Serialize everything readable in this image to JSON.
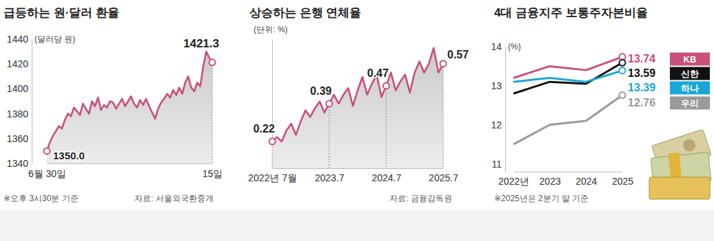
{
  "chart_data": [
    {
      "type": "line",
      "title": "급등하는 원·달러 환율",
      "y_label": "(달러당 원)",
      "categories": [
        "6월 30일",
        null,
        null,
        null,
        null,
        null,
        null,
        null,
        null,
        null,
        null,
        null,
        null,
        null,
        null,
        null,
        null,
        null,
        null,
        null,
        null,
        null,
        null,
        null,
        null,
        null,
        null,
        null,
        null,
        null,
        null,
        null,
        null,
        null,
        null,
        null,
        null,
        null,
        null,
        null,
        null,
        null,
        null,
        null,
        null,
        null,
        null,
        null,
        null,
        null,
        null,
        null,
        null,
        null,
        null,
        "15일"
      ],
      "values": [
        1350,
        1357,
        1362,
        1366,
        1370,
        1368,
        1375,
        1380,
        1378,
        1385,
        1382,
        1379,
        1388,
        1384,
        1380,
        1390,
        1386,
        1393,
        1383,
        1387,
        1385,
        1390,
        1389,
        1384,
        1388,
        1392,
        1386,
        1390,
        1394,
        1388,
        1385,
        1391,
        1387,
        1392,
        1386,
        1381,
        1376,
        1384,
        1389,
        1392,
        1396,
        1393,
        1399,
        1395,
        1401,
        1396,
        1405,
        1410,
        1401,
        1398,
        1405,
        1402,
        1418,
        1430,
        1425,
        1421.3
      ],
      "color": "#c8507a",
      "ylim": [
        1340,
        1440
      ],
      "yticks": [
        1340,
        1360,
        1380,
        1400,
        1420,
        1440
      ],
      "grid": false,
      "annotations": [
        {
          "index": 0,
          "text": "1350.0"
        },
        {
          "index": 55,
          "text": "1421.3"
        }
      ],
      "notes": [
        "※오후 3시30분 기준"
      ],
      "source": "자료: 서울외국환중개"
    },
    {
      "type": "line",
      "title": "상승하는 은행 연체율",
      "y_label": "(단위: %)",
      "categories": [
        "2022년 7월",
        null,
        null,
        null,
        null,
        null,
        null,
        null,
        null,
        null,
        null,
        null,
        "2023.7",
        null,
        null,
        null,
        null,
        null,
        null,
        null,
        null,
        null,
        null,
        null,
        "2024.7",
        null,
        null,
        null,
        null,
        null,
        null,
        null,
        null,
        null,
        null,
        null,
        "2025.7"
      ],
      "values": [
        0.22,
        0.24,
        0.22,
        0.27,
        0.3,
        0.25,
        0.31,
        0.36,
        0.33,
        0.37,
        0.4,
        0.35,
        0.39,
        0.43,
        0.39,
        0.43,
        0.46,
        0.38,
        0.45,
        0.51,
        0.43,
        0.48,
        0.52,
        0.42,
        0.47,
        0.53,
        0.45,
        0.49,
        0.52,
        0.44,
        0.53,
        0.58,
        0.53,
        0.57,
        0.64,
        0.53,
        0.57
      ],
      "color": "#c8507a",
      "ylim": [
        0.1,
        0.68
      ],
      "tick_labels": "x",
      "grid": false,
      "annotations": [
        {
          "index": 0,
          "text": "0.22"
        },
        {
          "index": 12,
          "text": "0.39"
        },
        {
          "index": 24,
          "text": "0.47"
        },
        {
          "index": 36,
          "text": "0.57"
        }
      ],
      "source": "자료: 금융감독원"
    },
    {
      "type": "line",
      "title": "4대 금융지주 보통주자본비율",
      "y_label": "(%)",
      "categories": [
        "2022년",
        "2023",
        "2024",
        "2025"
      ],
      "series": [
        {
          "name": "KB",
          "color": "#c8507a",
          "values": [
            13.2,
            13.5,
            13.4,
            13.74
          ]
        },
        {
          "name": "신한",
          "color": "#111111",
          "values": [
            12.8,
            13.1,
            13.05,
            13.59
          ]
        },
        {
          "name": "하나",
          "color": "#1ba6d8",
          "values": [
            13.1,
            13.2,
            13.1,
            13.39
          ]
        },
        {
          "name": "우리",
          "color": "#9a9a9a",
          "values": [
            11.5,
            12.0,
            12.1,
            12.76
          ]
        }
      ],
      "ylim": [
        10.8,
        14
      ],
      "yticks": [
        11,
        12,
        13,
        14
      ],
      "legend": "right",
      "grid": false,
      "annotations": [
        {
          "series": 0,
          "index": 3,
          "text": "13.74"
        },
        {
          "series": 1,
          "index": 3,
          "text": "13.59"
        },
        {
          "series": 2,
          "index": 3,
          "text": "13.39"
        },
        {
          "series": 3,
          "index": 3,
          "text": "12.76"
        }
      ],
      "notes": [
        "※2025년은 2분기 말 기준"
      ]
    }
  ]
}
